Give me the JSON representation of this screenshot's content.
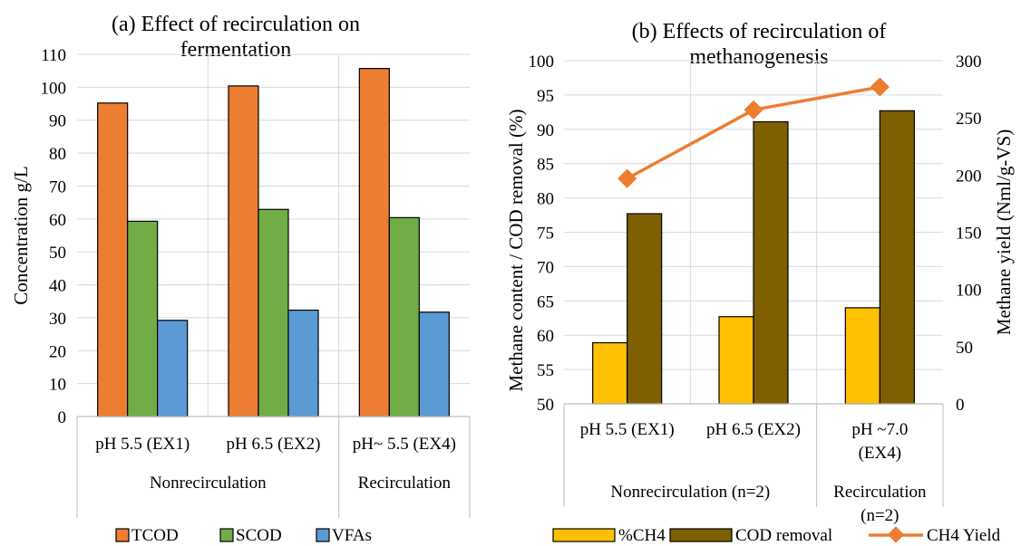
{
  "chart_data": [
    {
      "type": "bar",
      "title_lines": [
        "(a) Effect of recirculation on",
        "fermentation"
      ],
      "ylabel": "Concentration g/L",
      "xlabel": "",
      "ylim": [
        0,
        110
      ],
      "yticks": [
        "0",
        "10",
        "20",
        "30",
        "40",
        "50",
        "60",
        "70",
        "80",
        "90",
        "100",
        "110"
      ],
      "grid": true,
      "categories": [
        "pH 5.5 (EX1)",
        "pH 6.5 (EX2)",
        "pH~ 5.5 (EX4)"
      ],
      "groups": [
        {
          "label": "Nonrecirculation",
          "span": 2
        },
        {
          "label": "Recirculation",
          "span": 1
        }
      ],
      "series": [
        {
          "name": "TCOD",
          "color": "#ED7D31",
          "values": [
            95.2,
            100.4,
            105.7
          ]
        },
        {
          "name": "SCOD",
          "color": "#70AD47",
          "values": [
            59.3,
            62.9,
            60.4
          ]
        },
        {
          "name": "VFAs",
          "color": "#5B9BD5",
          "values": [
            29.2,
            32.3,
            31.7
          ]
        }
      ],
      "legend_position": "bottom"
    },
    {
      "type": "bar+line",
      "title_lines": [
        "(b) Effects of recirculation of",
        "methanogenesis"
      ],
      "ylabel_left": "Methane content / COD removal (%)",
      "ylabel_right": "Methane yield (Nml/g-VS)",
      "ylim_left": [
        50,
        100
      ],
      "ylim_right": [
        0,
        300
      ],
      "yticks_left": [
        "50",
        "55",
        "60",
        "65",
        "70",
        "75",
        "80",
        "85",
        "90",
        "95",
        "100"
      ],
      "yticks_right": [
        "0",
        "50",
        "100",
        "150",
        "200",
        "250",
        "300"
      ],
      "grid": true,
      "categories": [
        [
          "pH 5.5 (EX1)"
        ],
        [
          "pH 6.5 (EX2)"
        ],
        [
          "pH ~7.0",
          "(EX4)"
        ]
      ],
      "groups": [
        {
          "label_lines": [
            "Nonrecirculation (n=2)"
          ],
          "span": 2
        },
        {
          "label_lines": [
            "Recirculation",
            "(n=2)"
          ],
          "span": 1
        }
      ],
      "series": [
        {
          "name": "%CH4",
          "color": "#FFC000",
          "axis": "left",
          "kind": "bar",
          "values": [
            58.9,
            62.7,
            64.0
          ]
        },
        {
          "name": "COD removal",
          "color": "#7F6000",
          "axis": "left",
          "kind": "bar",
          "values": [
            77.7,
            91.1,
            92.7
          ]
        },
        {
          "name": "CH4 Yield",
          "color": "#ED7D31",
          "axis": "right",
          "kind": "line",
          "values": [
            197,
            257,
            277
          ]
        }
      ],
      "legend_position": "bottom"
    }
  ]
}
